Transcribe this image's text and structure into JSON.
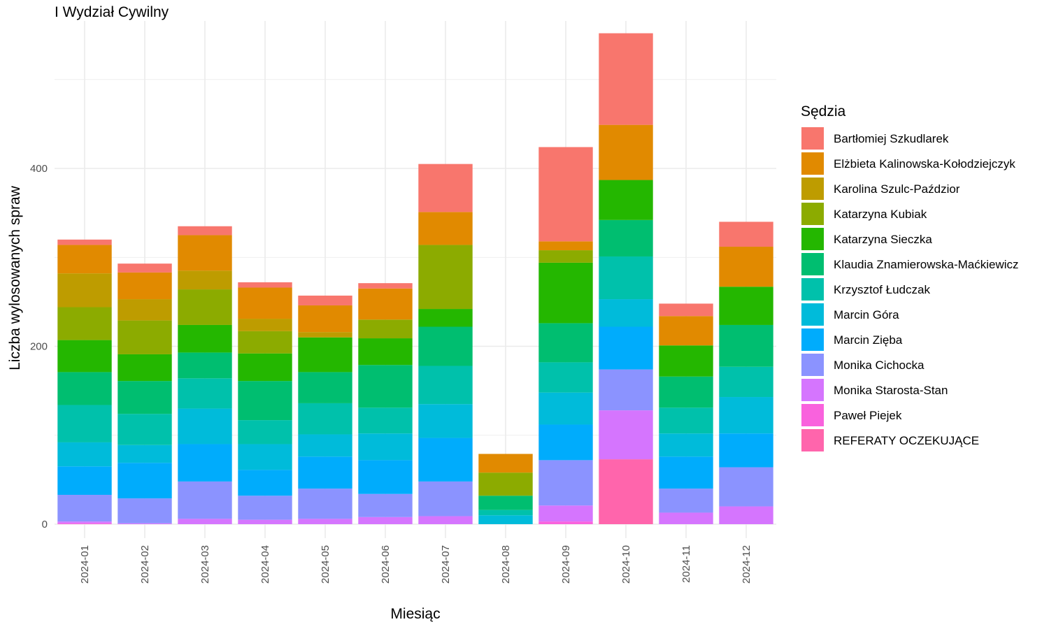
{
  "chart_data": {
    "type": "bar",
    "stacked": true,
    "title": "I Wydział Cywilny",
    "xlabel": "Miesiąc",
    "ylabel": "Liczba wylosowanych spraw",
    "ylim": [
      0,
      560
    ],
    "yticks": [
      0,
      200,
      400
    ],
    "grid": true,
    "legend_title": "Sędzia",
    "legend_position": "right",
    "categories": [
      "2024-01",
      "2024-02",
      "2024-03",
      "2024-04",
      "2024-05",
      "2024-06",
      "2024-07",
      "2024-08",
      "2024-09",
      "2024-10",
      "2024-11",
      "2024-12"
    ],
    "series": [
      {
        "name": "Bartłomiej Szkudlarek",
        "color": "#F8766D",
        "values": [
          6,
          10,
          10,
          6,
          11,
          6,
          54,
          0,
          106,
          103,
          14,
          28
        ]
      },
      {
        "name": "Elżbieta Kalinowska-Kołodziejczyk",
        "color": "#E18A00",
        "values": [
          32,
          30,
          40,
          35,
          30,
          35,
          37,
          21,
          10,
          62,
          33,
          45
        ]
      },
      {
        "name": "Karolina Szulc-Paździor",
        "color": "#BE9C00",
        "values": [
          38,
          24,
          21,
          14,
          6,
          0,
          0,
          0,
          0,
          0,
          0,
          0
        ]
      },
      {
        "name": "Katarzyna Kubiak",
        "color": "#8CAB00",
        "values": [
          37,
          38,
          40,
          25,
          0,
          21,
          72,
          26,
          14,
          0,
          0,
          0
        ]
      },
      {
        "name": "Katarzyna Sieczka",
        "color": "#24B700",
        "values": [
          36,
          30,
          31,
          31,
          39,
          30,
          20,
          0,
          68,
          45,
          35,
          43
        ]
      },
      {
        "name": "Klaudia Znamierowska-Maćkiewicz",
        "color": "#00BE70",
        "values": [
          37,
          37,
          29,
          44,
          35,
          48,
          44,
          16,
          44,
          41,
          35,
          47
        ]
      },
      {
        "name": "Krzysztof Łudczak",
        "color": "#00C1AB",
        "values": [
          42,
          35,
          34,
          27,
          35,
          29,
          43,
          6,
          34,
          48,
          29,
          34
        ]
      },
      {
        "name": "Marcin Góra",
        "color": "#00BBDA",
        "values": [
          27,
          20,
          40,
          29,
          25,
          30,
          38,
          10,
          36,
          31,
          26,
          41
        ]
      },
      {
        "name": "Marcin Zięba",
        "color": "#00ACFC",
        "values": [
          32,
          40,
          42,
          29,
          36,
          38,
          49,
          0,
          40,
          48,
          36,
          38
        ]
      },
      {
        "name": "Monika Cichocka",
        "color": "#8B93FF",
        "values": [
          30,
          28,
          42,
          27,
          34,
          26,
          39,
          0,
          51,
          46,
          27,
          44
        ]
      },
      {
        "name": "Monika Starosta-Stan",
        "color": "#D575FE",
        "values": [
          2,
          1,
          6,
          5,
          6,
          8,
          9,
          0,
          18,
          55,
          13,
          20
        ]
      },
      {
        "name": "Paweł Piejek",
        "color": "#F962DD",
        "values": [
          1,
          0,
          0,
          0,
          0,
          0,
          0,
          0,
          3,
          0,
          0,
          0
        ]
      },
      {
        "name": "REFERATY OCZEKUJĄCE",
        "color": "#FF65AC",
        "values": [
          0,
          0,
          0,
          0,
          0,
          0,
          0,
          0,
          0,
          73,
          0,
          0
        ]
      }
    ]
  }
}
